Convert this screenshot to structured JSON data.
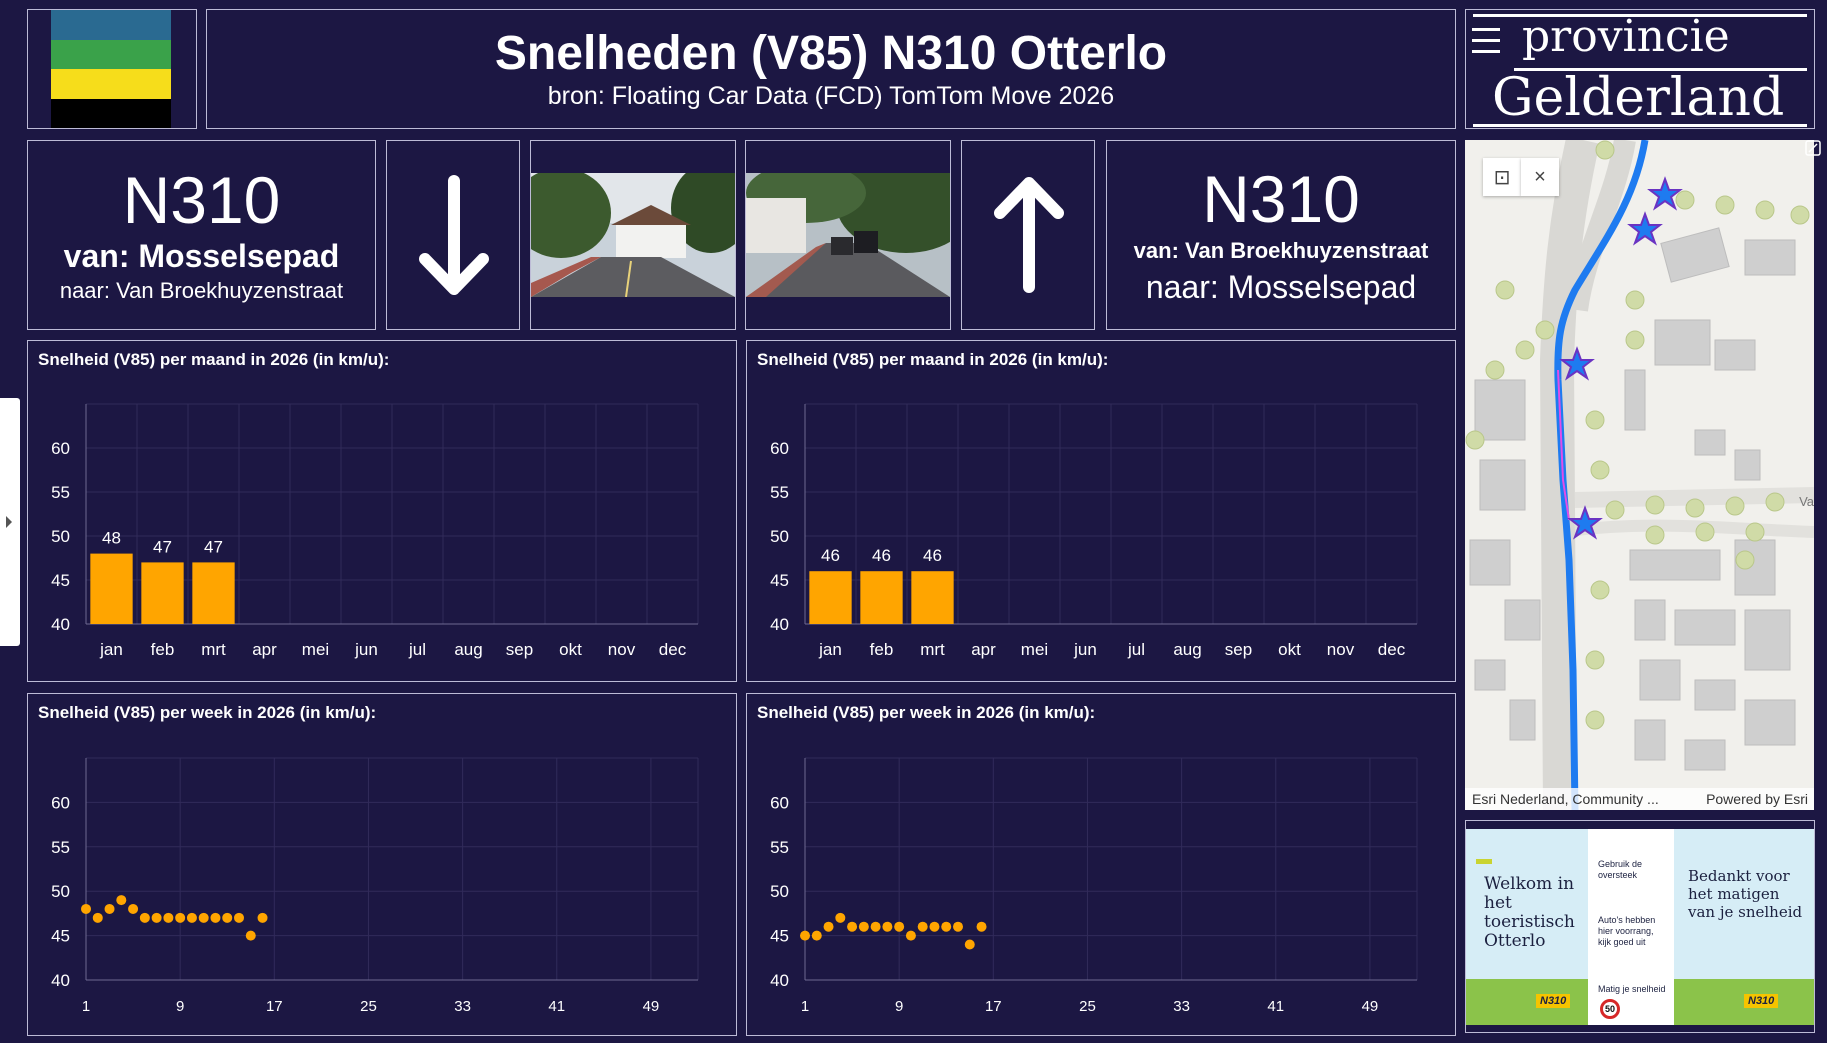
{
  "header": {
    "title": "Snelheden (V85) N310 Otterlo",
    "subtitle": "bron: Floating Car Data (FCD) TomTom Move 2026",
    "logo_line1": "provincie",
    "logo_line2": "Gelderland",
    "flag_colors": [
      "#2a6a91",
      "#3aa24a",
      "#f6dd1b",
      "#000000"
    ]
  },
  "direction_left": {
    "road": "N310",
    "from": "van: Mosselsepad",
    "to": "naar: Van Broekhuyzenstraat",
    "arrow": "arrow-down"
  },
  "direction_right": {
    "road": "N310",
    "from": "van: Van Broekhuyzenstraat",
    "to": "naar: Mosselsepad",
    "arrow": "arrow-up"
  },
  "map": {
    "attribution": "Esri Nederland, Community ...",
    "powered_by": "Powered by Esri",
    "street_label": "Va",
    "close_label": "×"
  },
  "poster": {
    "left_text": "Welkom in het toeristisch Otterlo",
    "mid_1": "Gebruik de oversteek",
    "mid_2": "Auto's hebben hier voorrang, kijk goed uit",
    "mid_3": "Matig je snelheid",
    "speed_sign": "50",
    "right_text": "Bedankt voor het matigen van je snelheid",
    "road_tag": "N310"
  },
  "chart_data": [
    {
      "id": "monthly-left",
      "type": "bar",
      "title": "Snelheid (V85) per maand in 2026 (in km/u):",
      "categories": [
        "jan",
        "feb",
        "mrt",
        "apr",
        "mei",
        "jun",
        "jul",
        "aug",
        "sep",
        "okt",
        "nov",
        "dec"
      ],
      "values": [
        48,
        47,
        47,
        null,
        null,
        null,
        null,
        null,
        null,
        null,
        null,
        null
      ],
      "ylim": [
        40,
        65
      ],
      "yticks": [
        40,
        45,
        50,
        55,
        60
      ],
      "color": "#ffa500"
    },
    {
      "id": "monthly-right",
      "type": "bar",
      "title": "Snelheid (V85) per maand in 2026 (in km/u):",
      "categories": [
        "jan",
        "feb",
        "mrt",
        "apr",
        "mei",
        "jun",
        "jul",
        "aug",
        "sep",
        "okt",
        "nov",
        "dec"
      ],
      "values": [
        46,
        46,
        46,
        null,
        null,
        null,
        null,
        null,
        null,
        null,
        null,
        null
      ],
      "ylim": [
        40,
        65
      ],
      "yticks": [
        40,
        45,
        50,
        55,
        60
      ],
      "color": "#ffa500"
    },
    {
      "id": "weekly-left",
      "type": "scatter",
      "title": "Snelheid (V85) per week in 2026 (in km/u):",
      "x": [
        1,
        2,
        3,
        4,
        5,
        6,
        7,
        8,
        9,
        10,
        11,
        12,
        13,
        14,
        15,
        16
      ],
      "values": [
        48,
        47,
        48,
        49,
        48,
        47,
        47,
        47,
        47,
        47,
        47,
        47,
        47,
        47,
        45,
        47
      ],
      "xlim": [
        1,
        53
      ],
      "xticks": [
        1,
        9,
        17,
        25,
        33,
        41,
        49
      ],
      "ylim": [
        40,
        65
      ],
      "yticks": [
        40,
        45,
        50,
        55,
        60
      ],
      "color": "#ffa500"
    },
    {
      "id": "weekly-right",
      "type": "scatter",
      "title": "Snelheid (V85) per week in 2026 (in km/u):",
      "x": [
        1,
        2,
        3,
        4,
        5,
        6,
        7,
        8,
        9,
        10,
        11,
        12,
        13,
        14,
        15,
        16
      ],
      "values": [
        45,
        45,
        46,
        47,
        46,
        46,
        46,
        46,
        46,
        45,
        46,
        46,
        46,
        46,
        44,
        46
      ],
      "xlim": [
        1,
        53
      ],
      "xticks": [
        1,
        9,
        17,
        25,
        33,
        41,
        49
      ],
      "ylim": [
        40,
        65
      ],
      "yticks": [
        40,
        45,
        50,
        55,
        60
      ],
      "color": "#ffa500"
    }
  ]
}
